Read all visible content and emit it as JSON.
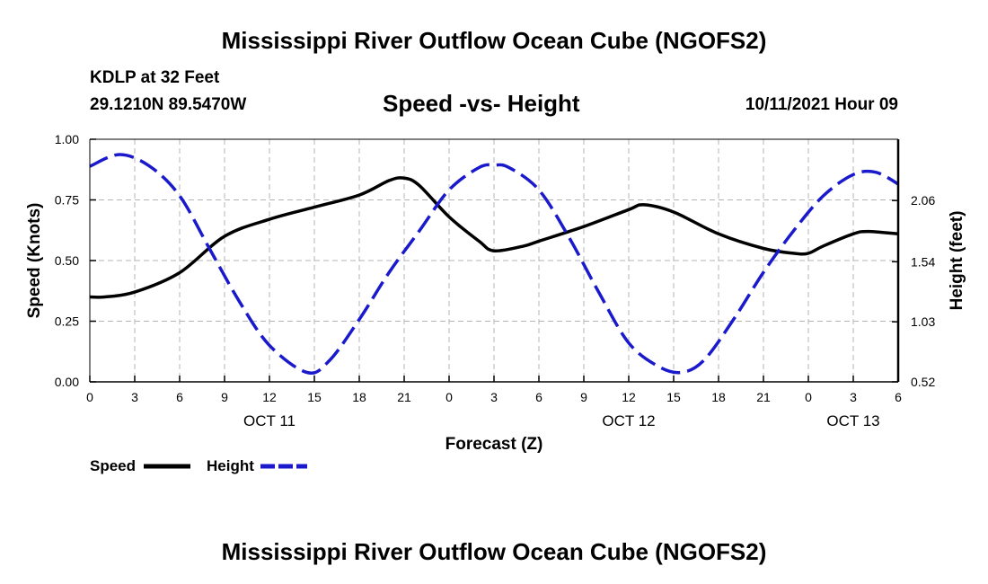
{
  "header": {
    "title": "Mississippi River Outflow Ocean Cube (NGOFS2)",
    "station": "KDLP at 32 Feet",
    "coords": "29.1210N  89.5470W",
    "subtitle": "Speed -vs- Height",
    "datetime": "10/11/2021 Hour 09"
  },
  "footer": {
    "title": "Mississippi River Outflow Ocean Cube (NGOFS2)"
  },
  "colors": {
    "speed": "#000000",
    "height": "#1a1acc",
    "grid": "#b4b4b4"
  },
  "legend": {
    "speed_label": "Speed",
    "height_label": "Height"
  },
  "chart_data": {
    "type": "line",
    "xlabel": "Forecast (Z)",
    "ylabel_left": "Speed (Knots)",
    "ylabel_right": "Height (feet)",
    "xlim": [
      0,
      54
    ],
    "ylim_left": [
      0,
      1.0
    ],
    "ylim_right": [
      0.52,
      2.58
    ],
    "grid": true,
    "x_ticks": [
      0,
      3,
      6,
      9,
      12,
      15,
      18,
      21,
      24,
      27,
      30,
      33,
      36,
      39,
      42,
      45,
      48,
      51,
      54
    ],
    "x_tick_labels": [
      "0",
      "3",
      "6",
      "9",
      "12",
      "15",
      "18",
      "21",
      "0",
      "3",
      "6",
      "9",
      "12",
      "15",
      "18",
      "21",
      "0",
      "3",
      "6"
    ],
    "date_labels": [
      {
        "x": 12,
        "label": "OCT 11"
      },
      {
        "x": 36,
        "label": "OCT 12"
      },
      {
        "x": 51,
        "label": "OCT 13"
      }
    ],
    "y_ticks_left": [
      0.0,
      0.25,
      0.5,
      0.75,
      1.0
    ],
    "y_tick_labels_left": [
      "0.00",
      "0.25",
      "0.50",
      "0.75",
      "1.00"
    ],
    "y_ticks_right": [
      0.52,
      1.03,
      1.54,
      2.06
    ],
    "y_tick_labels_right": [
      "0.52",
      "1.03",
      "1.54",
      "2.06"
    ],
    "series": [
      {
        "name": "Speed",
        "axis": "left",
        "style": "solid",
        "x": [
          0,
          1,
          3,
          6,
          9,
          12,
          15,
          18,
          20,
          21,
          22,
          24,
          26,
          27,
          29,
          30,
          33,
          36,
          37,
          39,
          42,
          45,
          47,
          48,
          49,
          51,
          52,
          54
        ],
        "y": [
          0.35,
          0.35,
          0.37,
          0.45,
          0.6,
          0.67,
          0.72,
          0.77,
          0.83,
          0.84,
          0.81,
          0.68,
          0.58,
          0.54,
          0.56,
          0.58,
          0.64,
          0.71,
          0.73,
          0.7,
          0.61,
          0.55,
          0.53,
          0.53,
          0.56,
          0.61,
          0.62,
          0.61
        ]
      },
      {
        "name": "Height",
        "axis": "right",
        "style": "dashed",
        "x": [
          0,
          2,
          4,
          6,
          8,
          10,
          12,
          14.5,
          16,
          18,
          20,
          22,
          24,
          26,
          27,
          28,
          30,
          32,
          34,
          36,
          38,
          39.5,
          41,
          43,
          45,
          47,
          49,
          51,
          52.5,
          54
        ],
        "y": [
          2.35,
          2.45,
          2.35,
          2.1,
          1.65,
          1.2,
          0.83,
          0.6,
          0.7,
          1.05,
          1.45,
          1.8,
          2.15,
          2.34,
          2.36,
          2.34,
          2.15,
          1.75,
          1.28,
          0.85,
          0.65,
          0.6,
          0.7,
          1.05,
          1.45,
          1.8,
          2.1,
          2.28,
          2.3,
          2.2
        ]
      }
    ]
  }
}
